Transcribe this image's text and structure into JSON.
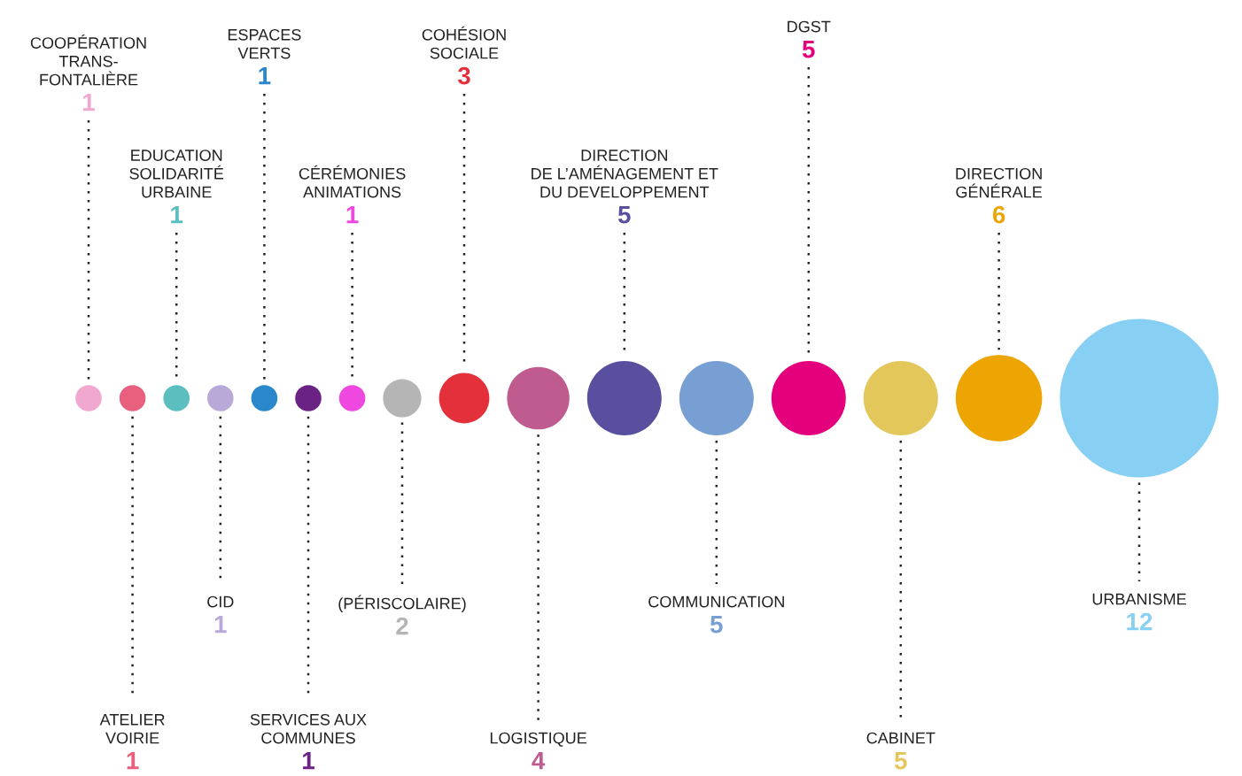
{
  "chart_data": {
    "type": "other",
    "data_labels": true,
    "categories": [
      "COOPÉRATION\nTRANS-\nFONTALIÈRE",
      "ATELIER\nVOIRIE",
      "EDUCATION\nSOLIDARITÉ\nURBAINE",
      "CID",
      "ESPACES\nVERTS",
      "SERVICES AUX\nCOMMUNES",
      "CÉRÉMONIES\nANIMATIONS",
      "(PÉRISCOLAIRE)",
      "COHÉSION\nSOCIALE",
      "LOGISTIQUE",
      "DIRECTION\nDE L’AMÉNAGEMENT ET\nDU DEVELOPPEMENT",
      "COMMUNICATION",
      "DGST",
      "CABINET",
      "DIRECTION\nGÉNÉRALE",
      "URBANISME"
    ],
    "values": [
      1,
      1,
      1,
      1,
      1,
      1,
      1,
      2,
      3,
      4,
      5,
      5,
      5,
      5,
      6,
      12
    ],
    "colors": [
      "#f0a8d0",
      "#e8607e",
      "#5bbfc0",
      "#b9a9d8",
      "#2a87cc",
      "#6a2385",
      "#ef48e0",
      "#b5b5b5",
      "#e4303a",
      "#bf5b8f",
      "#58509e",
      "#779fd3",
      "#e4007c",
      "#e3c75a",
      "#eca502",
      "#87cff3"
    ]
  }
}
